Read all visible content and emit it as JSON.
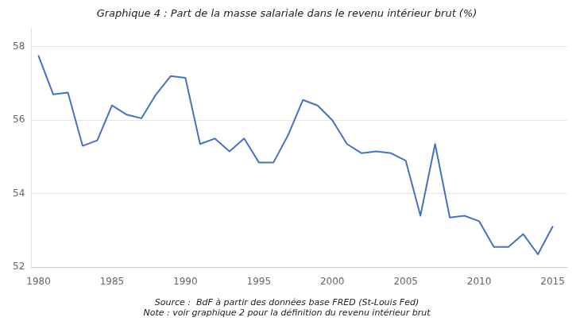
{
  "chart_data": {
    "type": "line",
    "title": "Graphique 4 : Part de la masse salariale dans le revenu intérieur brut (%)",
    "x": [
      1980,
      1981,
      1982,
      1983,
      1984,
      1985,
      1986,
      1987,
      1988,
      1989,
      1990,
      1991,
      1992,
      1993,
      1994,
      1995,
      1996,
      1997,
      1998,
      1999,
      2000,
      2001,
      2002,
      2003,
      2004,
      2005,
      2006,
      2007,
      2008,
      2009,
      2010,
      2011,
      2012,
      2013,
      2014,
      2015
    ],
    "values": [
      57.75,
      56.7,
      56.75,
      55.3,
      55.45,
      56.4,
      56.15,
      56.05,
      56.7,
      57.2,
      57.15,
      55.35,
      55.5,
      55.15,
      55.5,
      54.85,
      54.85,
      55.6,
      56.55,
      56.4,
      56.0,
      55.35,
      55.1,
      55.15,
      55.1,
      54.9,
      53.4,
      55.35,
      53.35,
      53.4,
      53.25,
      52.55,
      52.55,
      52.9,
      52.35,
      53.1
    ],
    "color": "#4472c4",
    "xlim": [
      1979.5,
      2016.0
    ],
    "xticks": [
      1980,
      1985,
      1990,
      1995,
      2000,
      2005,
      2010,
      2015
    ],
    "ylim": [
      52,
      58.5
    ],
    "yticks": [
      52,
      54,
      56,
      58
    ],
    "grid": true,
    "annotations": [
      "Source :  BdF à partir des données base FRED (St-Louis Fed)",
      "Note : voir graphique 2 pour la définition du revenu intérieur brut"
    ]
  }
}
